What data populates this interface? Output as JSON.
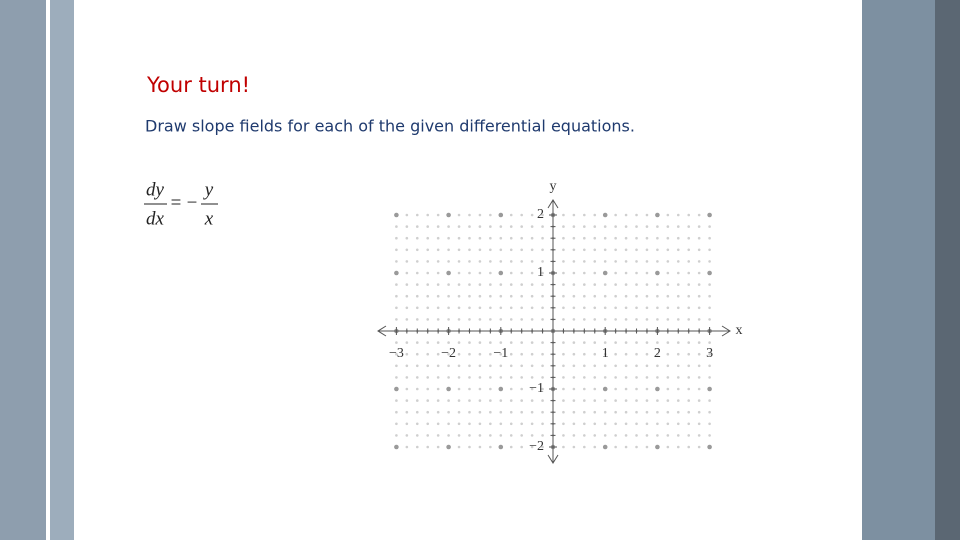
{
  "heading": "Your turn!",
  "instruction": "Draw slope fields for each of the given differential equations.",
  "equation": {
    "lhs_num": "dy",
    "lhs_den": "dx",
    "equals": "=",
    "minus": "−",
    "rhs_num": "y",
    "rhs_den": "x"
  },
  "graph": {
    "x_label": "x",
    "y_label": "y",
    "x_tick_labels": [
      "−3",
      "−2",
      "−1",
      "1",
      "2",
      "3"
    ],
    "y_tick_labels": [
      "2",
      "1",
      "−1",
      "−2"
    ]
  }
}
